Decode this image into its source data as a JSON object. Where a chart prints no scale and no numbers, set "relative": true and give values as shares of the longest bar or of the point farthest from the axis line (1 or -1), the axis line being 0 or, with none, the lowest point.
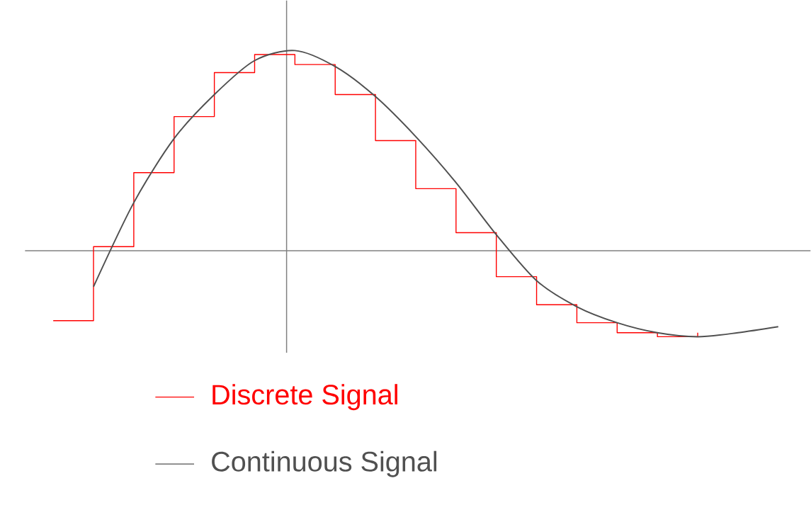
{
  "chart_data": {
    "type": "line",
    "relative": true,
    "legend": "bottom",
    "categories": [
      null,
      null,
      null,
      null,
      null,
      null,
      null,
      null,
      null,
      null,
      null,
      null,
      null,
      null,
      null,
      null,
      null,
      null,
      null
    ],
    "series": [
      {
        "name": "Discrete Signal",
        "type": "step",
        "color": "#ff0000",
        "values": [
          -0.35,
          0.02,
          0.39,
          0.67,
          0.89,
          0.98,
          0.93,
          0.78,
          0.55,
          0.31,
          0.09,
          -0.13,
          -0.27,
          -0.36,
          -0.41,
          -0.43,
          -0.41,
          null,
          null
        ]
      },
      {
        "name": "Continuous Signal",
        "color": "#505050",
        "values": [
          null,
          -0.18,
          0.24,
          0.56,
          0.78,
          0.95,
          1.0,
          0.92,
          0.77,
          0.57,
          0.34,
          0.08,
          -0.15,
          -0.28,
          -0.36,
          -0.41,
          -0.43,
          -0.41,
          -0.38
        ]
      }
    ]
  }
}
